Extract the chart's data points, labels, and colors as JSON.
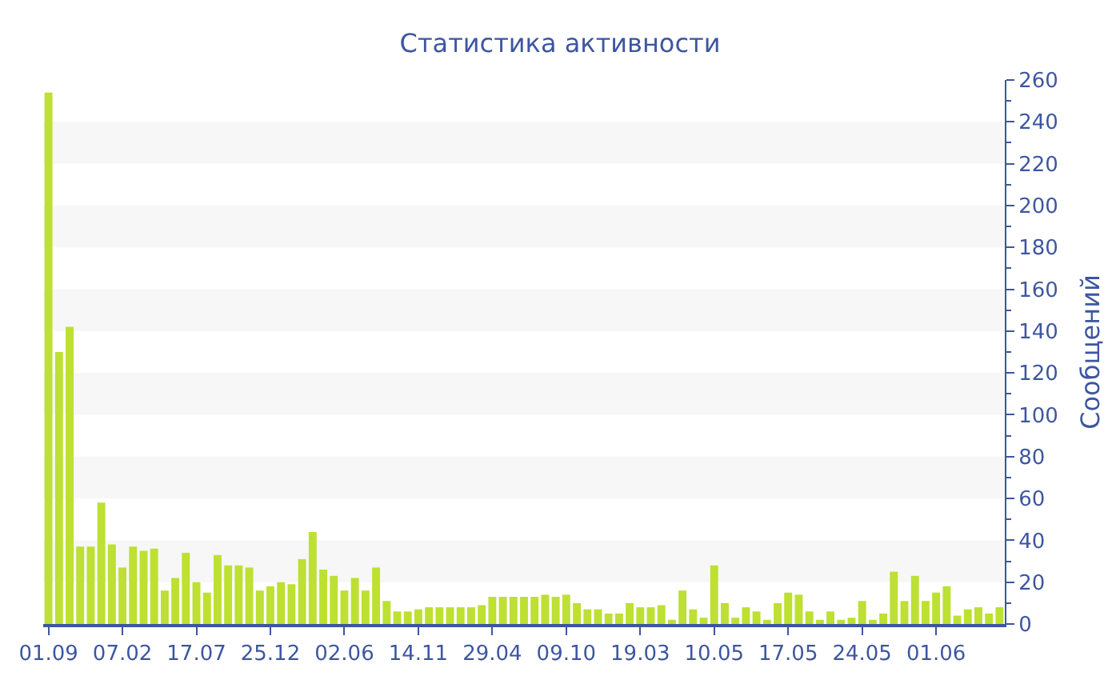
{
  "chart_data": {
    "type": "bar",
    "title": "Статистика активности",
    "y2label": "Сообщений",
    "categories": [
      "01.09",
      null,
      null,
      null,
      null,
      null,
      null,
      "07.02",
      null,
      null,
      null,
      null,
      null,
      null,
      "17.07",
      null,
      null,
      null,
      null,
      null,
      null,
      "25.12",
      null,
      null,
      null,
      null,
      null,
      null,
      "02.06",
      null,
      null,
      null,
      null,
      null,
      null,
      "14.11",
      null,
      null,
      null,
      null,
      null,
      null,
      "29.04",
      null,
      null,
      null,
      null,
      null,
      null,
      "09.10",
      null,
      null,
      null,
      null,
      null,
      null,
      "19.03",
      null,
      null,
      null,
      null,
      null,
      null,
      "10.05",
      null,
      null,
      null,
      null,
      null,
      null,
      "17.05",
      null,
      null,
      null,
      null,
      null,
      null,
      "24.05",
      null,
      null,
      null,
      null,
      null,
      null,
      "01.06",
      null,
      null,
      null,
      null,
      null,
      null
    ],
    "series": [
      {
        "color": "#bde032",
        "axis": "y2",
        "values": [
          254,
          130,
          142,
          37,
          37,
          58,
          38,
          27,
          37,
          35,
          36,
          16,
          22,
          34,
          20,
          15,
          33,
          28,
          28,
          27,
          16,
          18,
          20,
          19,
          31,
          44,
          26,
          23,
          16,
          22,
          16,
          27,
          11,
          6,
          6,
          7,
          8,
          8,
          8,
          8,
          8,
          9,
          13,
          13,
          13,
          13,
          13,
          14,
          13,
          14,
          10,
          7,
          7,
          5,
          5,
          10,
          8,
          8,
          9,
          2,
          16,
          7,
          3,
          28,
          10,
          3,
          8,
          6,
          2,
          10,
          15,
          14,
          6,
          2,
          6,
          2,
          3,
          11,
          2,
          5,
          25,
          11,
          23,
          11,
          15,
          18,
          4,
          7,
          8,
          5,
          8
        ]
      }
    ],
    "y2lim": [
      0,
      260
    ],
    "y2ticks": [
      0,
      20,
      40,
      60,
      80,
      100,
      120,
      140,
      160,
      180,
      200,
      220,
      240,
      260
    ],
    "bands": [
      {
        "axis": "y2",
        "from": 20,
        "to": 40,
        "color": "#f7f7f7"
      },
      {
        "axis": "y2",
        "from": 60,
        "to": 80,
        "color": "#f7f7f7"
      },
      {
        "axis": "y2",
        "from": 100,
        "to": 120,
        "color": "#f7f7f7"
      },
      {
        "axis": "y2",
        "from": 140,
        "to": 160,
        "color": "#f7f7f7"
      },
      {
        "axis": "y2",
        "from": 180,
        "to": 200,
        "color": "#f7f7f7"
      },
      {
        "axis": "y2",
        "from": 220,
        "to": 240,
        "color": "#f7f7f7"
      }
    ],
    "legend": false
  }
}
